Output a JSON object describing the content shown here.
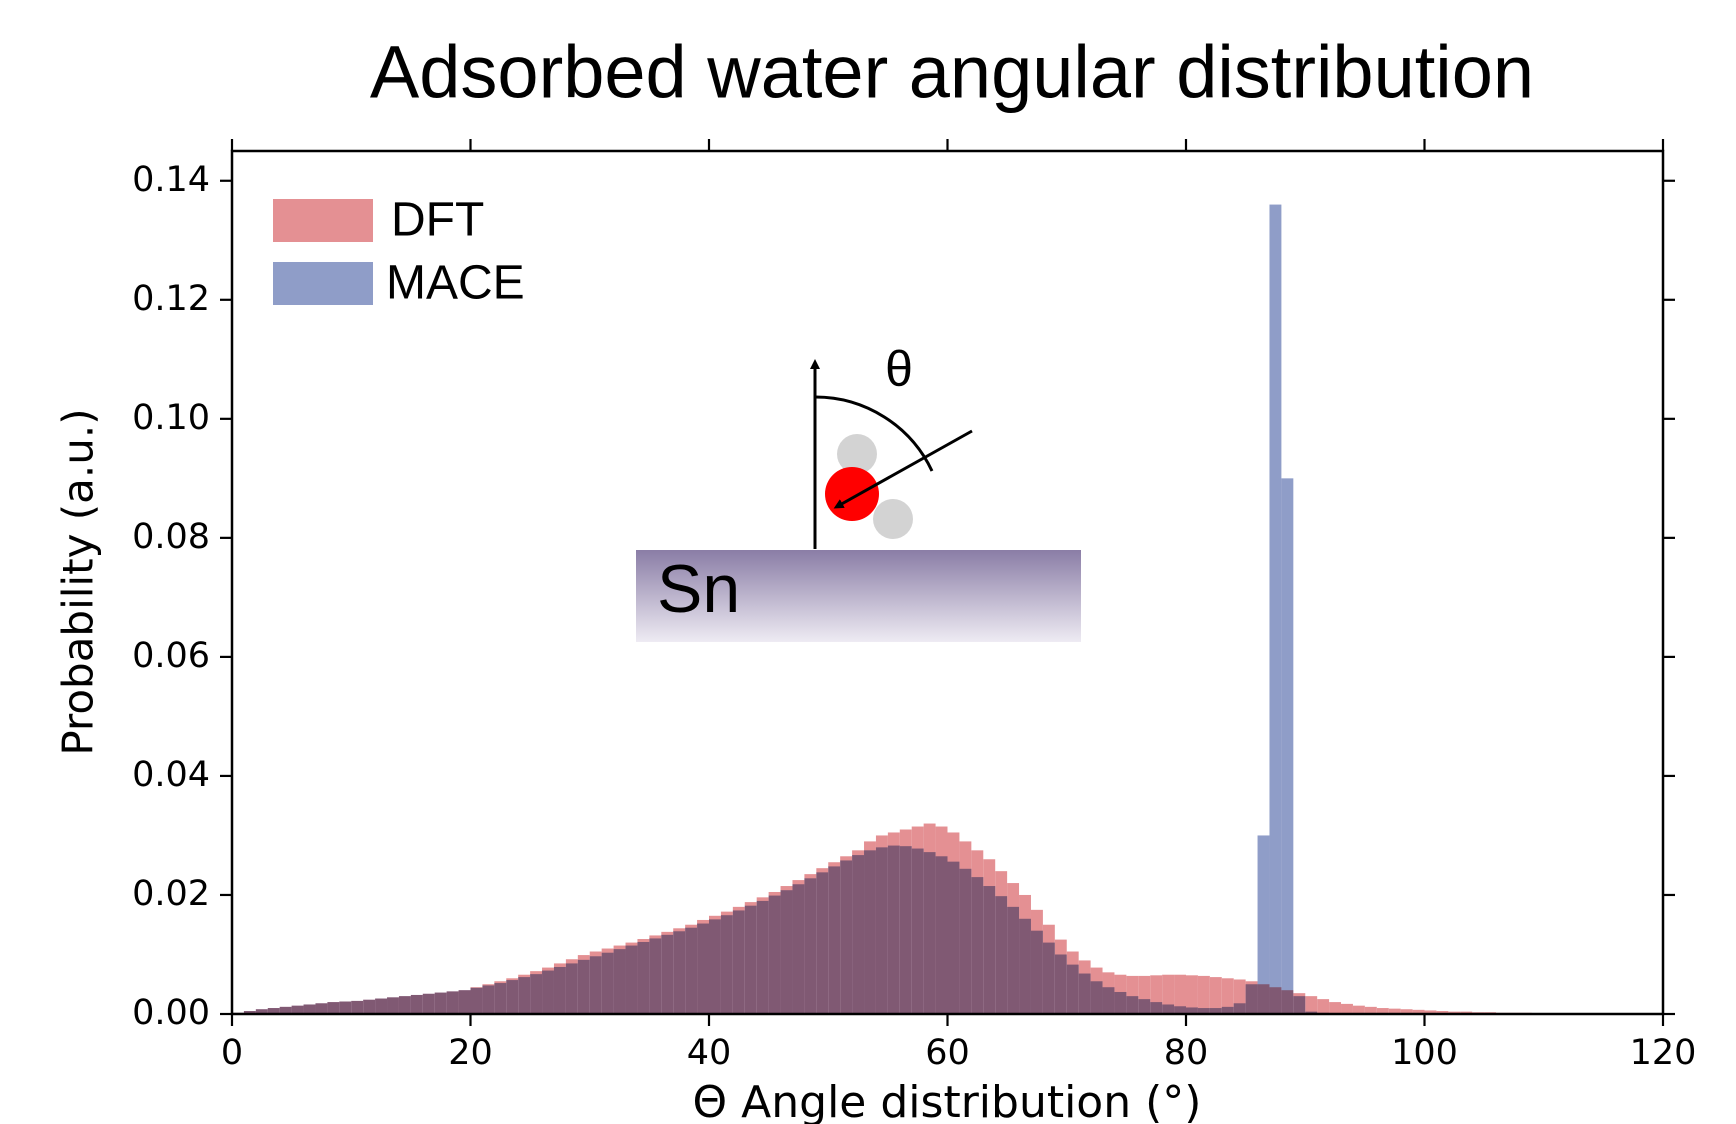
{
  "chart_data": {
    "type": "histogram",
    "title": "Adsorbed water angular distribution",
    "xlabel": "Θ Angle distribution (°)",
    "ylabel": "Probability (a.u.)",
    "bins": [
      0,
      1,
      2,
      3,
      4,
      5,
      6,
      7,
      8,
      9,
      10,
      11,
      12,
      13,
      14,
      15,
      16,
      17,
      18,
      19,
      20,
      21,
      22,
      23,
      24,
      25,
      26,
      27,
      28,
      29,
      30,
      31,
      32,
      33,
      34,
      35,
      36,
      37,
      38,
      39,
      40,
      41,
      42,
      43,
      44,
      45,
      46,
      47,
      48,
      49,
      50,
      51,
      52,
      53,
      54,
      55,
      56,
      57,
      58,
      59,
      60,
      61,
      62,
      63,
      64,
      65,
      66,
      67,
      68,
      69,
      70,
      71,
      72,
      73,
      74,
      75,
      76,
      77,
      78,
      79,
      80,
      81,
      82,
      83,
      84,
      85,
      86,
      87,
      88,
      89,
      90,
      91,
      92,
      93,
      94,
      95,
      96,
      97,
      98,
      99,
      100,
      101,
      102,
      103,
      104,
      105,
      106,
      107,
      108,
      109,
      110,
      111,
      112,
      113,
      114,
      115,
      116,
      117,
      118,
      119,
      120
    ],
    "series": [
      {
        "name": "DFT",
        "color": "#e49093",
        "values": [
          0.0002,
          0.0005,
          0.0008,
          0.001,
          0.0012,
          0.0014,
          0.0016,
          0.0018,
          0.002,
          0.0021,
          0.0022,
          0.0024,
          0.0026,
          0.0028,
          0.003,
          0.0032,
          0.0034,
          0.0036,
          0.0038,
          0.004,
          0.0045,
          0.005,
          0.0055,
          0.006,
          0.0066,
          0.0072,
          0.0078,
          0.0085,
          0.0092,
          0.0099,
          0.0105,
          0.011,
          0.0115,
          0.012,
          0.0126,
          0.0132,
          0.0138,
          0.0144,
          0.015,
          0.0158,
          0.0165,
          0.0172,
          0.018,
          0.0188,
          0.0196,
          0.0205,
          0.0215,
          0.0225,
          0.0235,
          0.0245,
          0.0255,
          0.0265,
          0.0275,
          0.029,
          0.03,
          0.0305,
          0.031,
          0.0315,
          0.032,
          0.0315,
          0.0305,
          0.029,
          0.0275,
          0.026,
          0.024,
          0.022,
          0.02,
          0.0175,
          0.015,
          0.0125,
          0.0105,
          0.009,
          0.0078,
          0.007,
          0.0066,
          0.0064,
          0.0064,
          0.0065,
          0.0066,
          0.0066,
          0.0065,
          0.0064,
          0.0062,
          0.006,
          0.0058,
          0.0055,
          0.005,
          0.0045,
          0.004,
          0.0035,
          0.003,
          0.0025,
          0.002,
          0.0017,
          0.0014,
          0.0012,
          0.001,
          0.0009,
          0.0008,
          0.0007,
          0.0006,
          0.0005,
          0.0004,
          0.0004,
          0.0003,
          0.0003,
          0.0002,
          0.0002,
          0.0002,
          0.0001,
          0.0001,
          0.0001,
          0.0001,
          0.0001,
          0,
          0,
          0,
          0,
          0,
          0
        ]
      },
      {
        "name": "MACE",
        "color": "#8f9dc8",
        "values": [
          0.0002,
          0.0005,
          0.0008,
          0.001,
          0.0012,
          0.0014,
          0.0016,
          0.0018,
          0.002,
          0.0021,
          0.0022,
          0.0024,
          0.0026,
          0.0028,
          0.003,
          0.0032,
          0.0034,
          0.0036,
          0.0038,
          0.004,
          0.0044,
          0.0048,
          0.0052,
          0.0057,
          0.0062,
          0.0067,
          0.0073,
          0.0079,
          0.0085,
          0.0091,
          0.0097,
          0.0103,
          0.0109,
          0.0115,
          0.0121,
          0.0127,
          0.0133,
          0.0139,
          0.0145,
          0.0152,
          0.0159,
          0.0166,
          0.0174,
          0.0182,
          0.019,
          0.0199,
          0.0208,
          0.0218,
          0.0228,
          0.0238,
          0.0248,
          0.0258,
          0.0267,
          0.0275,
          0.028,
          0.0283,
          0.0282,
          0.0278,
          0.0272,
          0.0265,
          0.0256,
          0.0244,
          0.023,
          0.0215,
          0.0198,
          0.018,
          0.016,
          0.014,
          0.012,
          0.01,
          0.0083,
          0.0068,
          0.0055,
          0.0045,
          0.0037,
          0.003,
          0.0025,
          0.002,
          0.0016,
          0.0013,
          0.0011,
          0.001,
          0.001,
          0.0012,
          0.0018,
          0.005,
          0.03,
          0.136,
          0.09,
          0.003,
          0.0004,
          0.0002,
          0.0001,
          0.0001,
          0,
          0,
          0,
          0,
          0,
          0,
          0,
          0,
          0,
          0,
          0,
          0,
          0,
          0,
          0,
          0,
          0,
          0,
          0,
          0,
          0,
          0,
          0,
          0,
          0,
          0
        ]
      }
    ],
    "xlim": [
      0,
      120
    ],
    "xticks": [
      0,
      20,
      40,
      60,
      80,
      100,
      120
    ],
    "ylim": [
      0,
      0.145
    ],
    "yticks": [
      {
        "value": 0,
        "label": "0.00"
      },
      0.02,
      0.04,
      0.06,
      0.08,
      {
        "value": 0.1,
        "label": "0.10"
      },
      0.12,
      0.14
    ],
    "legend": "upper left",
    "inset": {
      "angle_label": "θ",
      "surface_label": "Sn"
    }
  }
}
